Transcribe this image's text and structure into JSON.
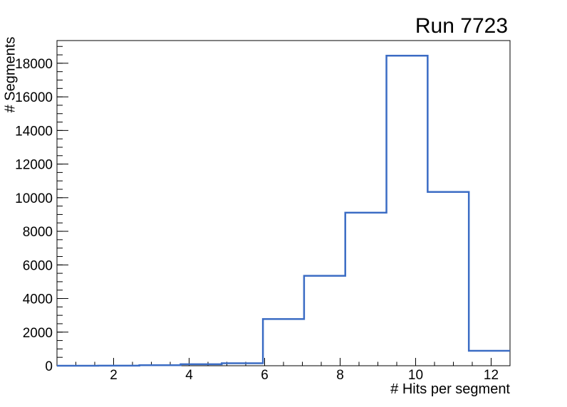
{
  "colors": {
    "background": "#ffffff",
    "frame": "#000000",
    "text": "#000000",
    "histogram_line": "#3b6cc4"
  },
  "chart_data": {
    "type": "bar",
    "subtype": "step-histogram",
    "title": "Run 7723",
    "xlabel": "# Hits per segment",
    "ylabel": "# Segments",
    "xlim": [
      0.5,
      12.5
    ],
    "ylim": [
      0,
      19350
    ],
    "grid": false,
    "legend": null,
    "bin_edges": [
      0.5,
      1.591,
      2.682,
      3.773,
      4.864,
      5.955,
      7.045,
      8.136,
      9.227,
      10.318,
      11.409,
      12.5
    ],
    "counts": [
      0,
      5,
      30,
      90,
      150,
      2780,
      5350,
      9110,
      18450,
      10340,
      890
    ],
    "x_axis": {
      "major_ticks": [
        2,
        4,
        6,
        8,
        10,
        12
      ],
      "major_tick_labels": [
        "2",
        "4",
        "6",
        "8",
        "10",
        "12"
      ],
      "minor_tick_step": 0.5
    },
    "y_axis": {
      "major_ticks": [
        0,
        2000,
        4000,
        6000,
        8000,
        10000,
        12000,
        14000,
        16000,
        18000
      ],
      "major_tick_labels": [
        "0",
        "2000",
        "4000",
        "6000",
        "8000",
        "10000",
        "12000",
        "14000",
        "16000",
        "18000"
      ],
      "minor_tick_step": 500
    },
    "line_color": "#3b6cc4",
    "line_width": 2.5
  }
}
